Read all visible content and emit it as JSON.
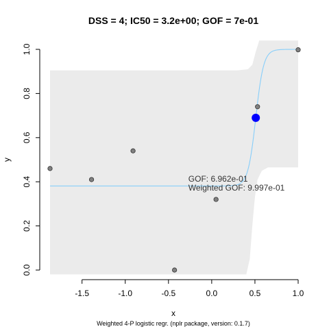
{
  "chart_data": {
    "type": "scatter",
    "title": "DSS = 4; IC50 = 3.2e+00; GOF = 7e-01",
    "xlabel": "x",
    "ylabel": "y",
    "footer": "Weighted 4-P logistic regr. (nplr package, version: 0.1.7)",
    "xlim": [
      -1.87,
      1.0
    ],
    "ylim": [
      0.0,
      1.0
    ],
    "x_ticks": [
      -1.5,
      -1.0,
      -0.5,
      0.0,
      0.5,
      1.0
    ],
    "x_tick_labels": [
      "-1.5",
      "-1.0",
      "-0.5",
      "0.0",
      "0.5",
      "1.0"
    ],
    "y_ticks": [
      0.0,
      0.2,
      0.4,
      0.6,
      0.8,
      1.0
    ],
    "y_tick_labels": [
      "0.0",
      "0.2",
      "0.4",
      "0.6",
      "0.8",
      "1.0"
    ],
    "points": [
      {
        "x": -1.87,
        "y": 0.46
      },
      {
        "x": -1.39,
        "y": 0.41
      },
      {
        "x": -0.91,
        "y": 0.54
      },
      {
        "x": -0.43,
        "y": 0.0
      },
      {
        "x": 0.05,
        "y": 0.32
      },
      {
        "x": 0.53,
        "y": 0.74
      },
      {
        "x": 1.0,
        "y": 0.998
      }
    ],
    "highlight_point": {
      "x": 0.51,
      "y": 0.69
    },
    "fit": {
      "bottom": 0.381,
      "top": 1.0,
      "x_mid": 0.51,
      "slope": 22
    },
    "confidence_band": {
      "lower": [
        {
          "x": -1.87,
          "y": -0.02
        },
        {
          "x": 0.4,
          "y": -0.02
        },
        {
          "x": 0.44,
          "y": 0.05
        },
        {
          "x": 0.47,
          "y": 0.2
        },
        {
          "x": 0.5,
          "y": 0.33
        },
        {
          "x": 0.53,
          "y": 0.41
        },
        {
          "x": 0.58,
          "y": 0.45
        },
        {
          "x": 0.65,
          "y": 0.465
        },
        {
          "x": 1.0,
          "y": 0.465
        }
      ],
      "upper": [
        {
          "x": 1.0,
          "y": 1.04
        },
        {
          "x": 0.55,
          "y": 1.04
        },
        {
          "x": 0.51,
          "y": 0.99
        },
        {
          "x": 0.47,
          "y": 0.93
        },
        {
          "x": 0.42,
          "y": 0.91
        },
        {
          "x": 0.3,
          "y": 0.905
        },
        {
          "x": -1.87,
          "y": 0.905
        }
      ]
    },
    "annotations": [
      "GOF: 6.962e-01",
      "Weighted GOF: 9.997e-01"
    ],
    "annotation_anchor": {
      "x": -0.27,
      "y": 0.4
    },
    "grid": false,
    "legend": "none",
    "colors": {
      "band": "#ebebeb",
      "fit_line": "#87CEFA",
      "point_fill": "#808080",
      "point_stroke": "#333333",
      "highlight": "#0000ff"
    }
  }
}
